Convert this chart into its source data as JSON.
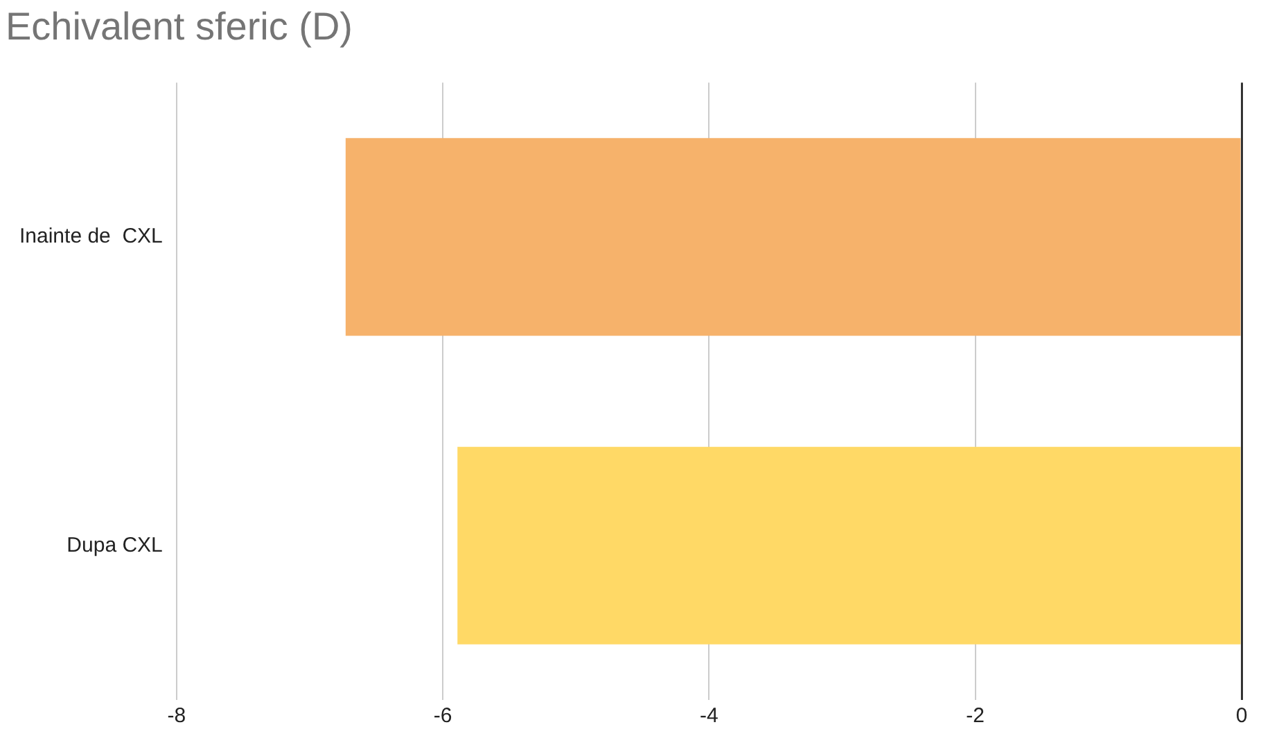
{
  "chart_data": {
    "type": "bar",
    "orientation": "horizontal",
    "title": "Echivalent sferic (D)",
    "categories": [
      "Inainte de  CXL",
      "Dupa CXL"
    ],
    "values": [
      -6.73,
      -5.89
    ],
    "colors": [
      "#f6b26b",
      "#ffd966"
    ],
    "xlim": [
      -8,
      0
    ],
    "xticks": [
      -8,
      -6,
      -4,
      -2,
      0
    ],
    "grid": "x",
    "legend": false
  }
}
